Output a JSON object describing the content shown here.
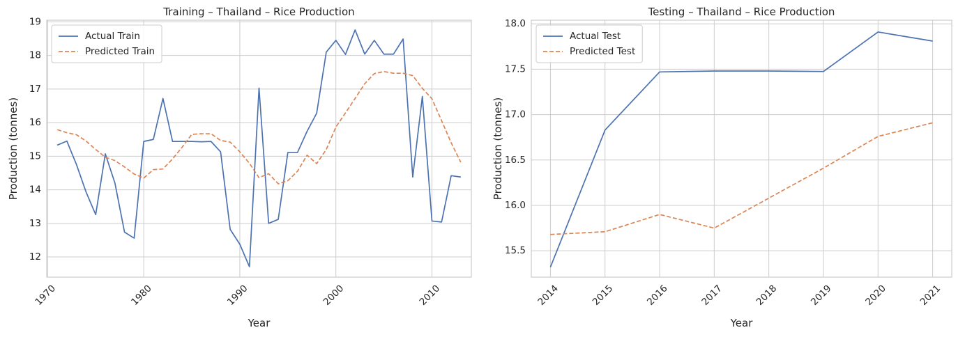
{
  "chart_data": [
    {
      "type": "line",
      "title": "Training – Thailand – Rice  Production",
      "xlabel": "Year",
      "ylabel": "Production (tonnes)",
      "xlim": [
        1969.9,
        2014.1
      ],
      "ylim": [
        11.4,
        19.05
      ],
      "xticks": [
        1970,
        1980,
        1990,
        2000,
        2010
      ],
      "yticks": [
        12,
        13,
        14,
        15,
        16,
        17,
        18,
        19
      ],
      "xtick_rotation": 45,
      "grid": true,
      "legend_position": "top-left",
      "series": [
        {
          "name": "Actual Train",
          "color": "#4c72b0",
          "dash": "solid",
          "x": [
            1971,
            1972,
            1973,
            1974,
            1975,
            1976,
            1977,
            1978,
            1979,
            1980,
            1981,
            1982,
            1983,
            1984,
            1985,
            1986,
            1987,
            1988,
            1989,
            1990,
            1991,
            1992,
            1993,
            1994,
            1995,
            1996,
            1997,
            1998,
            1999,
            2000,
            2001,
            2002,
            2003,
            2004,
            2005,
            2006,
            2007,
            2008,
            2009,
            2010,
            2011,
            2012,
            2013
          ],
          "y": [
            15.33,
            15.45,
            14.75,
            13.93,
            13.26,
            15.07,
            14.2,
            12.74,
            12.56,
            15.44,
            15.5,
            16.72,
            15.44,
            15.44,
            15.44,
            15.43,
            15.44,
            15.13,
            12.82,
            12.38,
            11.71,
            17.03,
            13.0,
            13.12,
            15.11,
            15.11,
            15.74,
            16.28,
            18.1,
            18.45,
            18.03,
            18.76,
            18.04,
            18.45,
            18.04,
            18.04,
            18.49,
            14.38,
            16.78,
            13.07,
            13.04,
            14.42,
            14.38
          ]
        },
        {
          "name": "Predicted Train",
          "color": "#dd8452",
          "dash": "dashed",
          "x": [
            1971,
            1972,
            1973,
            1974,
            1975,
            1976,
            1977,
            1978,
            1979,
            1980,
            1981,
            1982,
            1983,
            1984,
            1985,
            1986,
            1987,
            1988,
            1989,
            1990,
            1991,
            1992,
            1993,
            1994,
            1995,
            1996,
            1997,
            1998,
            1999,
            2000,
            2001,
            2002,
            2003,
            2004,
            2005,
            2006,
            2007,
            2008,
            2009,
            2010,
            2011,
            2012,
            2013
          ],
          "y": [
            15.79,
            15.7,
            15.64,
            15.45,
            15.2,
            14.97,
            14.87,
            14.68,
            14.47,
            14.35,
            14.6,
            14.62,
            14.92,
            15.27,
            15.65,
            15.67,
            15.67,
            15.47,
            15.42,
            15.13,
            14.79,
            14.36,
            14.48,
            14.18,
            14.27,
            14.55,
            15.03,
            14.78,
            15.2,
            15.87,
            16.29,
            16.72,
            17.16,
            17.46,
            17.52,
            17.47,
            17.47,
            17.4,
            17.02,
            16.71,
            16.06,
            15.4,
            14.82
          ]
        }
      ]
    },
    {
      "type": "line",
      "title": "Testing – Thailand – Rice  Production",
      "xlabel": "Year",
      "ylabel": "Production (tonnes)",
      "xlim": [
        2013.65,
        2021.35
      ],
      "ylim": [
        15.21,
        18.04
      ],
      "xticks": [
        2014,
        2015,
        2016,
        2017,
        2018,
        2019,
        2020,
        2021
      ],
      "yticks": [
        15.5,
        16.0,
        16.5,
        17.0,
        17.5,
        18.0
      ],
      "ytick_labels": [
        "15.5",
        "16.0",
        "16.5",
        "17.0",
        "17.5",
        "18.0"
      ],
      "xtick_rotation": 45,
      "grid": true,
      "legend_position": "top-left",
      "series": [
        {
          "name": "Actual Test",
          "color": "#4c72b0",
          "dash": "solid",
          "x": [
            2014,
            2015,
            2016,
            2017,
            2018,
            2019,
            2020,
            2021
          ],
          "y": [
            15.32,
            16.83,
            17.47,
            17.48,
            17.48,
            17.475,
            17.91,
            17.81
          ]
        },
        {
          "name": "Predicted Test",
          "color": "#dd8452",
          "dash": "dashed",
          "x": [
            2014,
            2015,
            2016,
            2017,
            2018,
            2019,
            2020,
            2021
          ],
          "y": [
            15.68,
            15.71,
            15.9,
            15.75,
            16.08,
            16.41,
            16.76,
            16.91
          ]
        }
      ]
    }
  ]
}
